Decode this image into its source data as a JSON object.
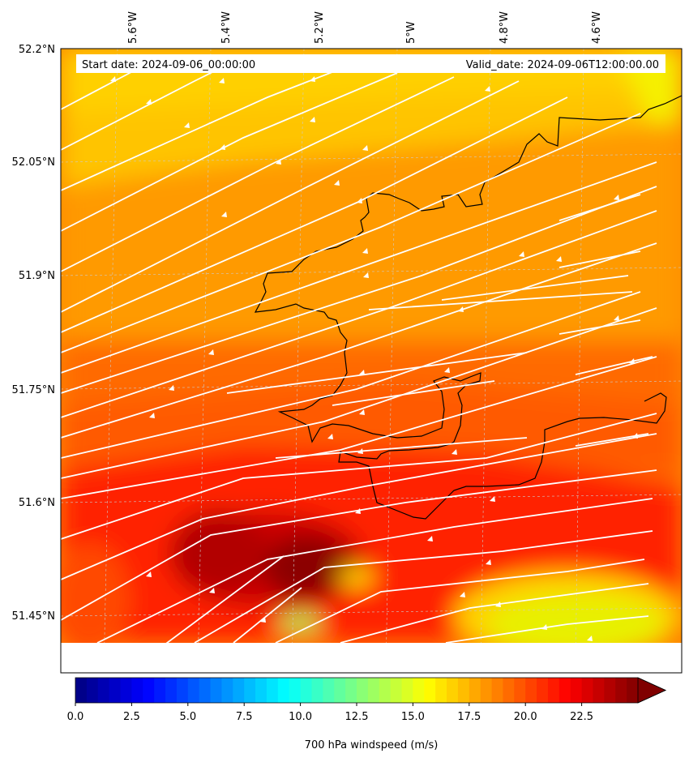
{
  "map": {
    "start_date": "Start date: 2024-09-06_00:00:00",
    "valid_date": "Valid_date: 2024-09-06T12:00:00.00",
    "lon_labels": [
      "5.6°W",
      "5.4°W",
      "5.2°W",
      "5°W",
      "4.8°W",
      "4.6°W"
    ],
    "lat_labels": [
      "52.2°N",
      "52.05°N",
      "51.9°N",
      "51.75°N",
      "51.6°N",
      "51.45°N"
    ],
    "field": "700 hPa windspeed",
    "overlay": "streamlines",
    "coastline_color": "#000000",
    "streamline_color": "#ffffff"
  },
  "colorbar": {
    "label": "700 hPa windspeed (m/s)",
    "ticks": [
      "0.0",
      "2.5",
      "5.0",
      "7.5",
      "10.0",
      "12.5",
      "15.0",
      "17.5",
      "20.0",
      "22.5"
    ],
    "tick_values": [
      0,
      2.5,
      5,
      7.5,
      10,
      12.5,
      15,
      17.5,
      20,
      22.5
    ],
    "min": 0,
    "max": 25,
    "extend": "max",
    "colormap": "jet"
  }
}
